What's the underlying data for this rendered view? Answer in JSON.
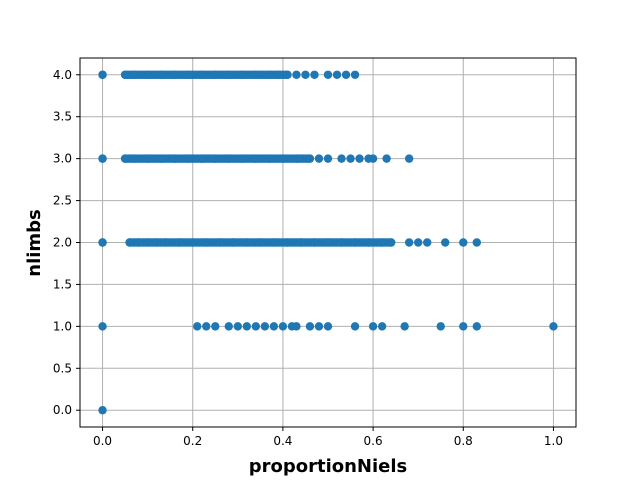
{
  "chart_data": {
    "type": "scatter",
    "xlabel": "proportionNiels",
    "ylabel": "nlimbs",
    "xlim": [
      -0.05,
      1.05
    ],
    "ylim": [
      -0.2,
      4.2
    ],
    "xticks": [
      0.0,
      0.2,
      0.4,
      0.6,
      0.8,
      1.0
    ],
    "xtick_labels": [
      "0.0",
      "0.2",
      "0.4",
      "0.6",
      "0.8",
      "1.0"
    ],
    "yticks": [
      0.0,
      0.5,
      1.0,
      1.5,
      2.0,
      2.5,
      3.0,
      3.5,
      4.0
    ],
    "ytick_labels": [
      "0.0",
      "0.5",
      "1.0",
      "1.5",
      "2.0",
      "2.5",
      "3.0",
      "3.5",
      "4.0"
    ],
    "grid": true,
    "marker_color": "#1f77b4",
    "points": [
      {
        "x": 0.0,
        "y": 0
      },
      {
        "x": 0.0,
        "y": 1
      },
      {
        "x": 0.0,
        "y": 2
      },
      {
        "x": 0.0,
        "y": 3
      },
      {
        "x": 0.0,
        "y": 4
      },
      {
        "x": 0.0,
        "y": 4
      },
      {
        "x": 0.05,
        "y": 4
      },
      {
        "x": 0.07,
        "y": 4
      },
      {
        "x": 0.1,
        "y": 4
      },
      {
        "x": 0.13,
        "y": 4
      },
      {
        "x": 0.16,
        "y": 4
      },
      {
        "x": 0.19,
        "y": 4
      },
      {
        "x": 0.22,
        "y": 4
      },
      {
        "x": 0.25,
        "y": 4
      },
      {
        "x": 0.28,
        "y": 4
      },
      {
        "x": 0.31,
        "y": 4
      },
      {
        "x": 0.34,
        "y": 4
      },
      {
        "x": 0.37,
        "y": 4
      },
      {
        "x": 0.39,
        "y": 4
      },
      {
        "x": 0.41,
        "y": 4
      },
      {
        "x": 0.43,
        "y": 4
      },
      {
        "x": 0.45,
        "y": 4
      },
      {
        "x": 0.47,
        "y": 4
      },
      {
        "x": 0.5,
        "y": 4
      },
      {
        "x": 0.52,
        "y": 4
      },
      {
        "x": 0.54,
        "y": 4
      },
      {
        "x": 0.56,
        "y": 4
      },
      {
        "x": 0.0,
        "y": 3
      },
      {
        "x": 0.05,
        "y": 3
      },
      {
        "x": 0.07,
        "y": 3
      },
      {
        "x": 0.1,
        "y": 3
      },
      {
        "x": 0.13,
        "y": 3
      },
      {
        "x": 0.16,
        "y": 3
      },
      {
        "x": 0.19,
        "y": 3
      },
      {
        "x": 0.22,
        "y": 3
      },
      {
        "x": 0.25,
        "y": 3
      },
      {
        "x": 0.28,
        "y": 3
      },
      {
        "x": 0.31,
        "y": 3
      },
      {
        "x": 0.34,
        "y": 3
      },
      {
        "x": 0.37,
        "y": 3
      },
      {
        "x": 0.4,
        "y": 3
      },
      {
        "x": 0.43,
        "y": 3
      },
      {
        "x": 0.46,
        "y": 3
      },
      {
        "x": 0.48,
        "y": 3
      },
      {
        "x": 0.5,
        "y": 3
      },
      {
        "x": 0.53,
        "y": 3
      },
      {
        "x": 0.55,
        "y": 3
      },
      {
        "x": 0.57,
        "y": 3
      },
      {
        "x": 0.59,
        "y": 3
      },
      {
        "x": 0.6,
        "y": 3
      },
      {
        "x": 0.63,
        "y": 3
      },
      {
        "x": 0.68,
        "y": 3
      },
      {
        "x": 0.0,
        "y": 2
      },
      {
        "x": 0.06,
        "y": 2
      },
      {
        "x": 0.08,
        "y": 2
      },
      {
        "x": 0.1,
        "y": 2
      },
      {
        "x": 0.12,
        "y": 2
      },
      {
        "x": 0.14,
        "y": 2
      },
      {
        "x": 0.17,
        "y": 2
      },
      {
        "x": 0.2,
        "y": 2
      },
      {
        "x": 0.23,
        "y": 2
      },
      {
        "x": 0.26,
        "y": 2
      },
      {
        "x": 0.29,
        "y": 2
      },
      {
        "x": 0.32,
        "y": 2
      },
      {
        "x": 0.35,
        "y": 2
      },
      {
        "x": 0.38,
        "y": 2
      },
      {
        "x": 0.41,
        "y": 2
      },
      {
        "x": 0.44,
        "y": 2
      },
      {
        "x": 0.47,
        "y": 2
      },
      {
        "x": 0.5,
        "y": 2
      },
      {
        "x": 0.53,
        "y": 2
      },
      {
        "x": 0.56,
        "y": 2
      },
      {
        "x": 0.59,
        "y": 2
      },
      {
        "x": 0.62,
        "y": 2
      },
      {
        "x": 0.64,
        "y": 2
      },
      {
        "x": 0.68,
        "y": 2
      },
      {
        "x": 0.7,
        "y": 2
      },
      {
        "x": 0.72,
        "y": 2
      },
      {
        "x": 0.76,
        "y": 2
      },
      {
        "x": 0.8,
        "y": 2
      },
      {
        "x": 0.83,
        "y": 2
      },
      {
        "x": 0.21,
        "y": 1
      },
      {
        "x": 0.23,
        "y": 1
      },
      {
        "x": 0.25,
        "y": 1
      },
      {
        "x": 0.28,
        "y": 1
      },
      {
        "x": 0.3,
        "y": 1
      },
      {
        "x": 0.32,
        "y": 1
      },
      {
        "x": 0.34,
        "y": 1
      },
      {
        "x": 0.36,
        "y": 1
      },
      {
        "x": 0.38,
        "y": 1
      },
      {
        "x": 0.4,
        "y": 1
      },
      {
        "x": 0.42,
        "y": 1
      },
      {
        "x": 0.43,
        "y": 1
      },
      {
        "x": 0.46,
        "y": 1
      },
      {
        "x": 0.48,
        "y": 1
      },
      {
        "x": 0.5,
        "y": 1
      },
      {
        "x": 0.56,
        "y": 1
      },
      {
        "x": 0.6,
        "y": 1
      },
      {
        "x": 0.62,
        "y": 1
      },
      {
        "x": 0.67,
        "y": 1
      },
      {
        "x": 0.75,
        "y": 1
      },
      {
        "x": 0.8,
        "y": 1
      },
      {
        "x": 0.83,
        "y": 1
      },
      {
        "x": 1.0,
        "y": 1
      }
    ]
  }
}
